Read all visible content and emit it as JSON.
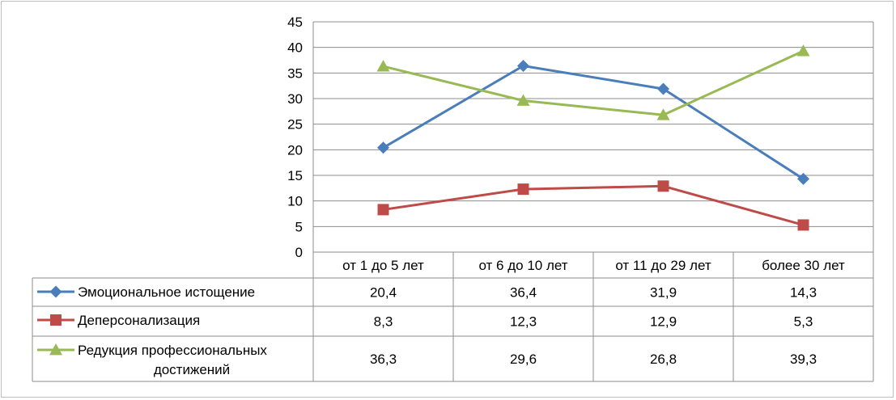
{
  "chart_data": {
    "type": "line",
    "title": "",
    "xlabel": "",
    "ylabel": "",
    "ylim": [
      0,
      45
    ],
    "yticks": [
      0,
      5,
      10,
      15,
      20,
      25,
      30,
      35,
      40,
      45
    ],
    "grid": true,
    "legend": "data-table",
    "categories": [
      "от 1 до 5 лет",
      "от 6 до 10 лет",
      "от 11 до 29 лет",
      "более 30 лет"
    ],
    "series": [
      {
        "name": "Эмоциональное истощение",
        "lines": [
          "Эмоциональное истощение"
        ],
        "marker": "diamond",
        "color": "#4a7ebb",
        "values": [
          20.4,
          36.4,
          31.9,
          14.3
        ],
        "labels": [
          "20,4",
          "36,4",
          "31,9",
          "14,3"
        ]
      },
      {
        "name": "Деперсонализация",
        "lines": [
          "Деперсонализация"
        ],
        "marker": "square",
        "color": "#be4b48",
        "values": [
          8.3,
          12.3,
          12.9,
          5.3
        ],
        "labels": [
          "8,3",
          "12,3",
          "12,9",
          "5,3"
        ]
      },
      {
        "name": "Редукция профессиональных достижений",
        "lines": [
          "Редукция профессиональных",
          "достижений"
        ],
        "marker": "triangle",
        "color": "#98b954",
        "values": [
          36.3,
          29.6,
          26.8,
          39.3
        ],
        "labels": [
          "36,3",
          "29,6",
          "26,8",
          "39,3"
        ]
      }
    ]
  }
}
